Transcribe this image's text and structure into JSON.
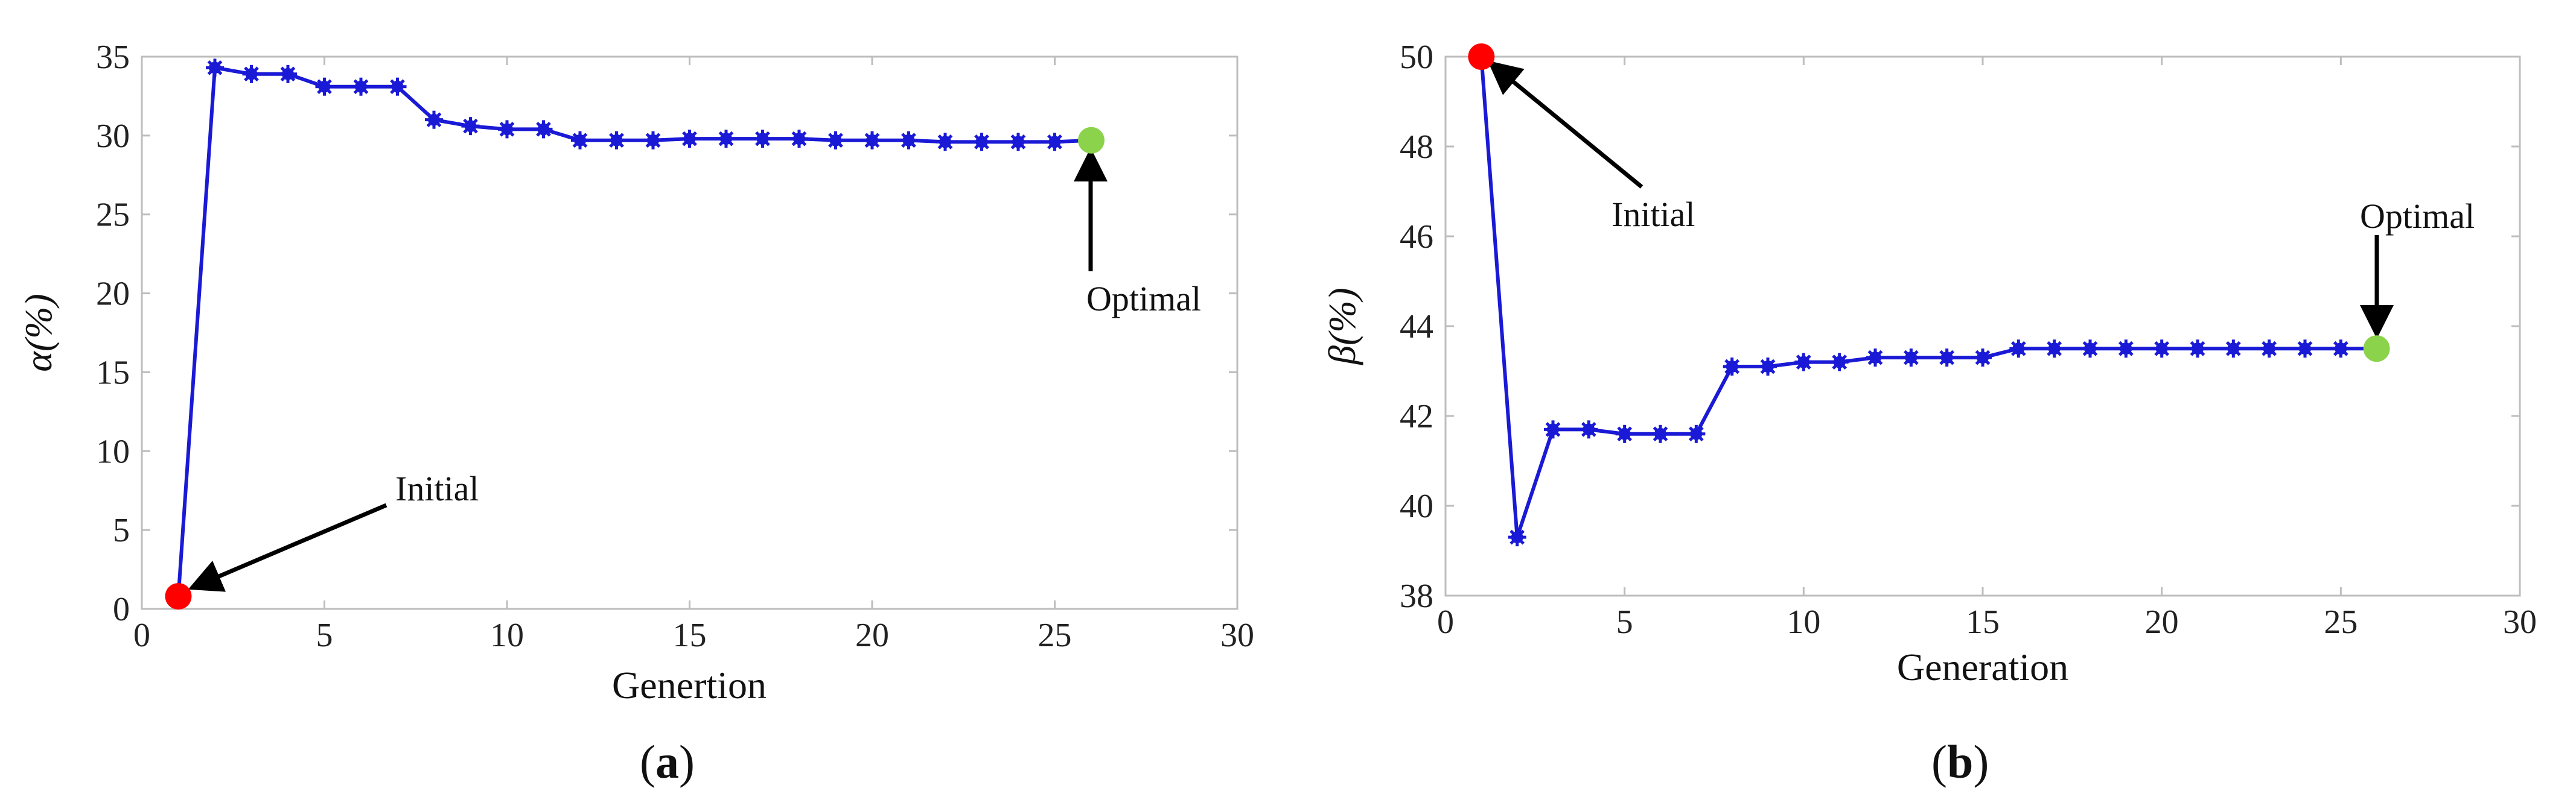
{
  "chart_data": [
    {
      "type": "line",
      "caption_letter": "a",
      "xlabel": "Genertion",
      "ylabel": "α(%)",
      "xlim": [
        0,
        30
      ],
      "ylim": [
        0,
        35
      ],
      "xticks": [
        0,
        5,
        10,
        15,
        20,
        25,
        30
      ],
      "yticks": [
        0,
        5,
        10,
        15,
        20,
        25,
        30,
        35
      ],
      "grid": false,
      "line_color": "#1a1ad6",
      "series": [
        {
          "x": [
            1,
            2,
            3,
            4,
            5,
            6,
            7,
            8,
            9,
            10,
            11,
            12,
            13,
            14,
            15,
            16,
            17,
            18,
            19,
            20,
            21,
            22,
            23,
            24,
            25,
            26
          ],
          "values": [
            0.8,
            34.3,
            33.9,
            33.9,
            33.1,
            33.1,
            33.1,
            31.0,
            30.6,
            30.4,
            30.4,
            29.7,
            29.7,
            29.7,
            29.8,
            29.8,
            29.8,
            29.8,
            29.7,
            29.7,
            29.7,
            29.6,
            29.6,
            29.6,
            29.6,
            29.7
          ]
        }
      ],
      "annotations": [
        {
          "text": "Initial",
          "x": 1,
          "y": 0.8,
          "color": "#ff0000"
        },
        {
          "text": "Optimal",
          "x": 26,
          "y": 29.7,
          "color": "#8bd34b"
        }
      ]
    },
    {
      "type": "line",
      "caption_letter": "b",
      "xlabel": "Generation",
      "ylabel": "β(%)",
      "xlim": [
        0,
        30
      ],
      "ylim": [
        38,
        50
      ],
      "xticks": [
        0,
        5,
        10,
        15,
        20,
        25,
        30
      ],
      "yticks": [
        38,
        40,
        42,
        44,
        46,
        48,
        50
      ],
      "grid": false,
      "line_color": "#1a1ad6",
      "series": [
        {
          "x": [
            1,
            2,
            3,
            4,
            5,
            6,
            7,
            8,
            9,
            10,
            11,
            12,
            13,
            14,
            15,
            16,
            17,
            18,
            19,
            20,
            21,
            22,
            23,
            24,
            25,
            26
          ],
          "values": [
            50.0,
            39.3,
            41.7,
            41.7,
            41.6,
            41.6,
            41.6,
            43.1,
            43.1,
            43.2,
            43.2,
            43.3,
            43.3,
            43.3,
            43.3,
            43.5,
            43.5,
            43.5,
            43.5,
            43.5,
            43.5,
            43.5,
            43.5,
            43.5,
            43.5,
            43.5
          ]
        }
      ],
      "annotations": [
        {
          "text": "Initial",
          "x": 1,
          "y": 50.0,
          "color": "#ff0000"
        },
        {
          "text": "Optimal",
          "x": 26,
          "y": 43.5,
          "color": "#8bd34b"
        }
      ]
    }
  ]
}
